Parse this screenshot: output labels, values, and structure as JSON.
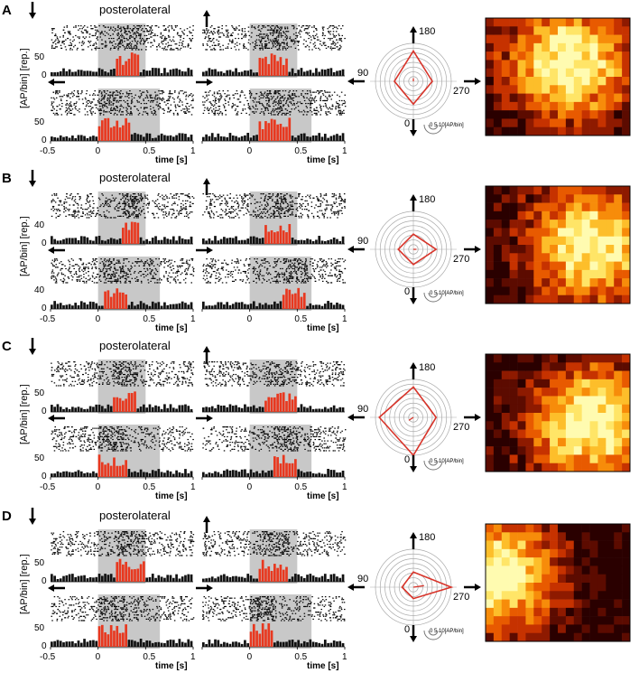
{
  "panels": [
    {
      "letter": "A",
      "region": "posterolateral",
      "tick_labels": [
        "-0.5",
        "0",
        "0.5",
        "1"
      ],
      "xlabel": "time [s]",
      "ylabel": "[AP/bin] [rep.]",
      "hist_ticks": [
        "50",
        "0"
      ],
      "polar": {
        "angles": [
          "180",
          "90",
          "270",
          "0"
        ],
        "scale": "0  5 10[AP/bin]",
        "values": {
          "180": 8,
          "270": 5,
          "0": 6,
          "90": 5
        }
      }
    },
    {
      "letter": "B",
      "region": "posterolateral",
      "tick_labels": [
        "-0.5",
        "0",
        "0.5",
        "1"
      ],
      "xlabel": "time [s]",
      "ylabel": "[AP/bin] [rep.]",
      "hist_ticks": [
        "40",
        "0"
      ],
      "polar": {
        "angles": [
          "180",
          "90",
          "270",
          "0"
        ],
        "scale": "0  5 10[AP/bin]",
        "values": {
          "180": 4,
          "270": 6,
          "0": 4,
          "90": 4
        }
      }
    },
    {
      "letter": "C",
      "region": "posterolateral",
      "tick_labels": [
        "-0.5",
        "0",
        "0.5",
        "1"
      ],
      "xlabel": "time [s]",
      "ylabel": "[AP/bin] [rep.]",
      "hist_ticks": [
        "50",
        "0"
      ],
      "polar": {
        "angles": [
          "180",
          "90",
          "270",
          "0"
        ],
        "scale": "0  5 10[AP/bin]",
        "values": {
          "180": 8,
          "270": 6,
          "0": 10,
          "90": 9
        }
      }
    },
    {
      "letter": "D",
      "region": "posterolateral",
      "tick_labels": [
        "-0.5",
        "0",
        "0.5",
        "1"
      ],
      "xlabel": "time [s]",
      "ylabel": "[AP/bin] [rep.]",
      "hist_ticks": [
        "50",
        "0"
      ],
      "polar": {
        "angles": [
          "180",
          "90",
          "270",
          "0"
        ],
        "scale": "0  5 10[AP/bin]",
        "values": {
          "180": 4,
          "270": 10,
          "0": 3,
          "90": 3
        }
      }
    }
  ],
  "colors": {
    "response": "#e8381f",
    "baseline": "#111111",
    "shade": "#c8c8c8",
    "polar_line": "#d8342a"
  },
  "icons": [
    "arrow-down-icon",
    "arrow-up-icon",
    "arrow-left-icon",
    "arrow-right-icon"
  ]
}
